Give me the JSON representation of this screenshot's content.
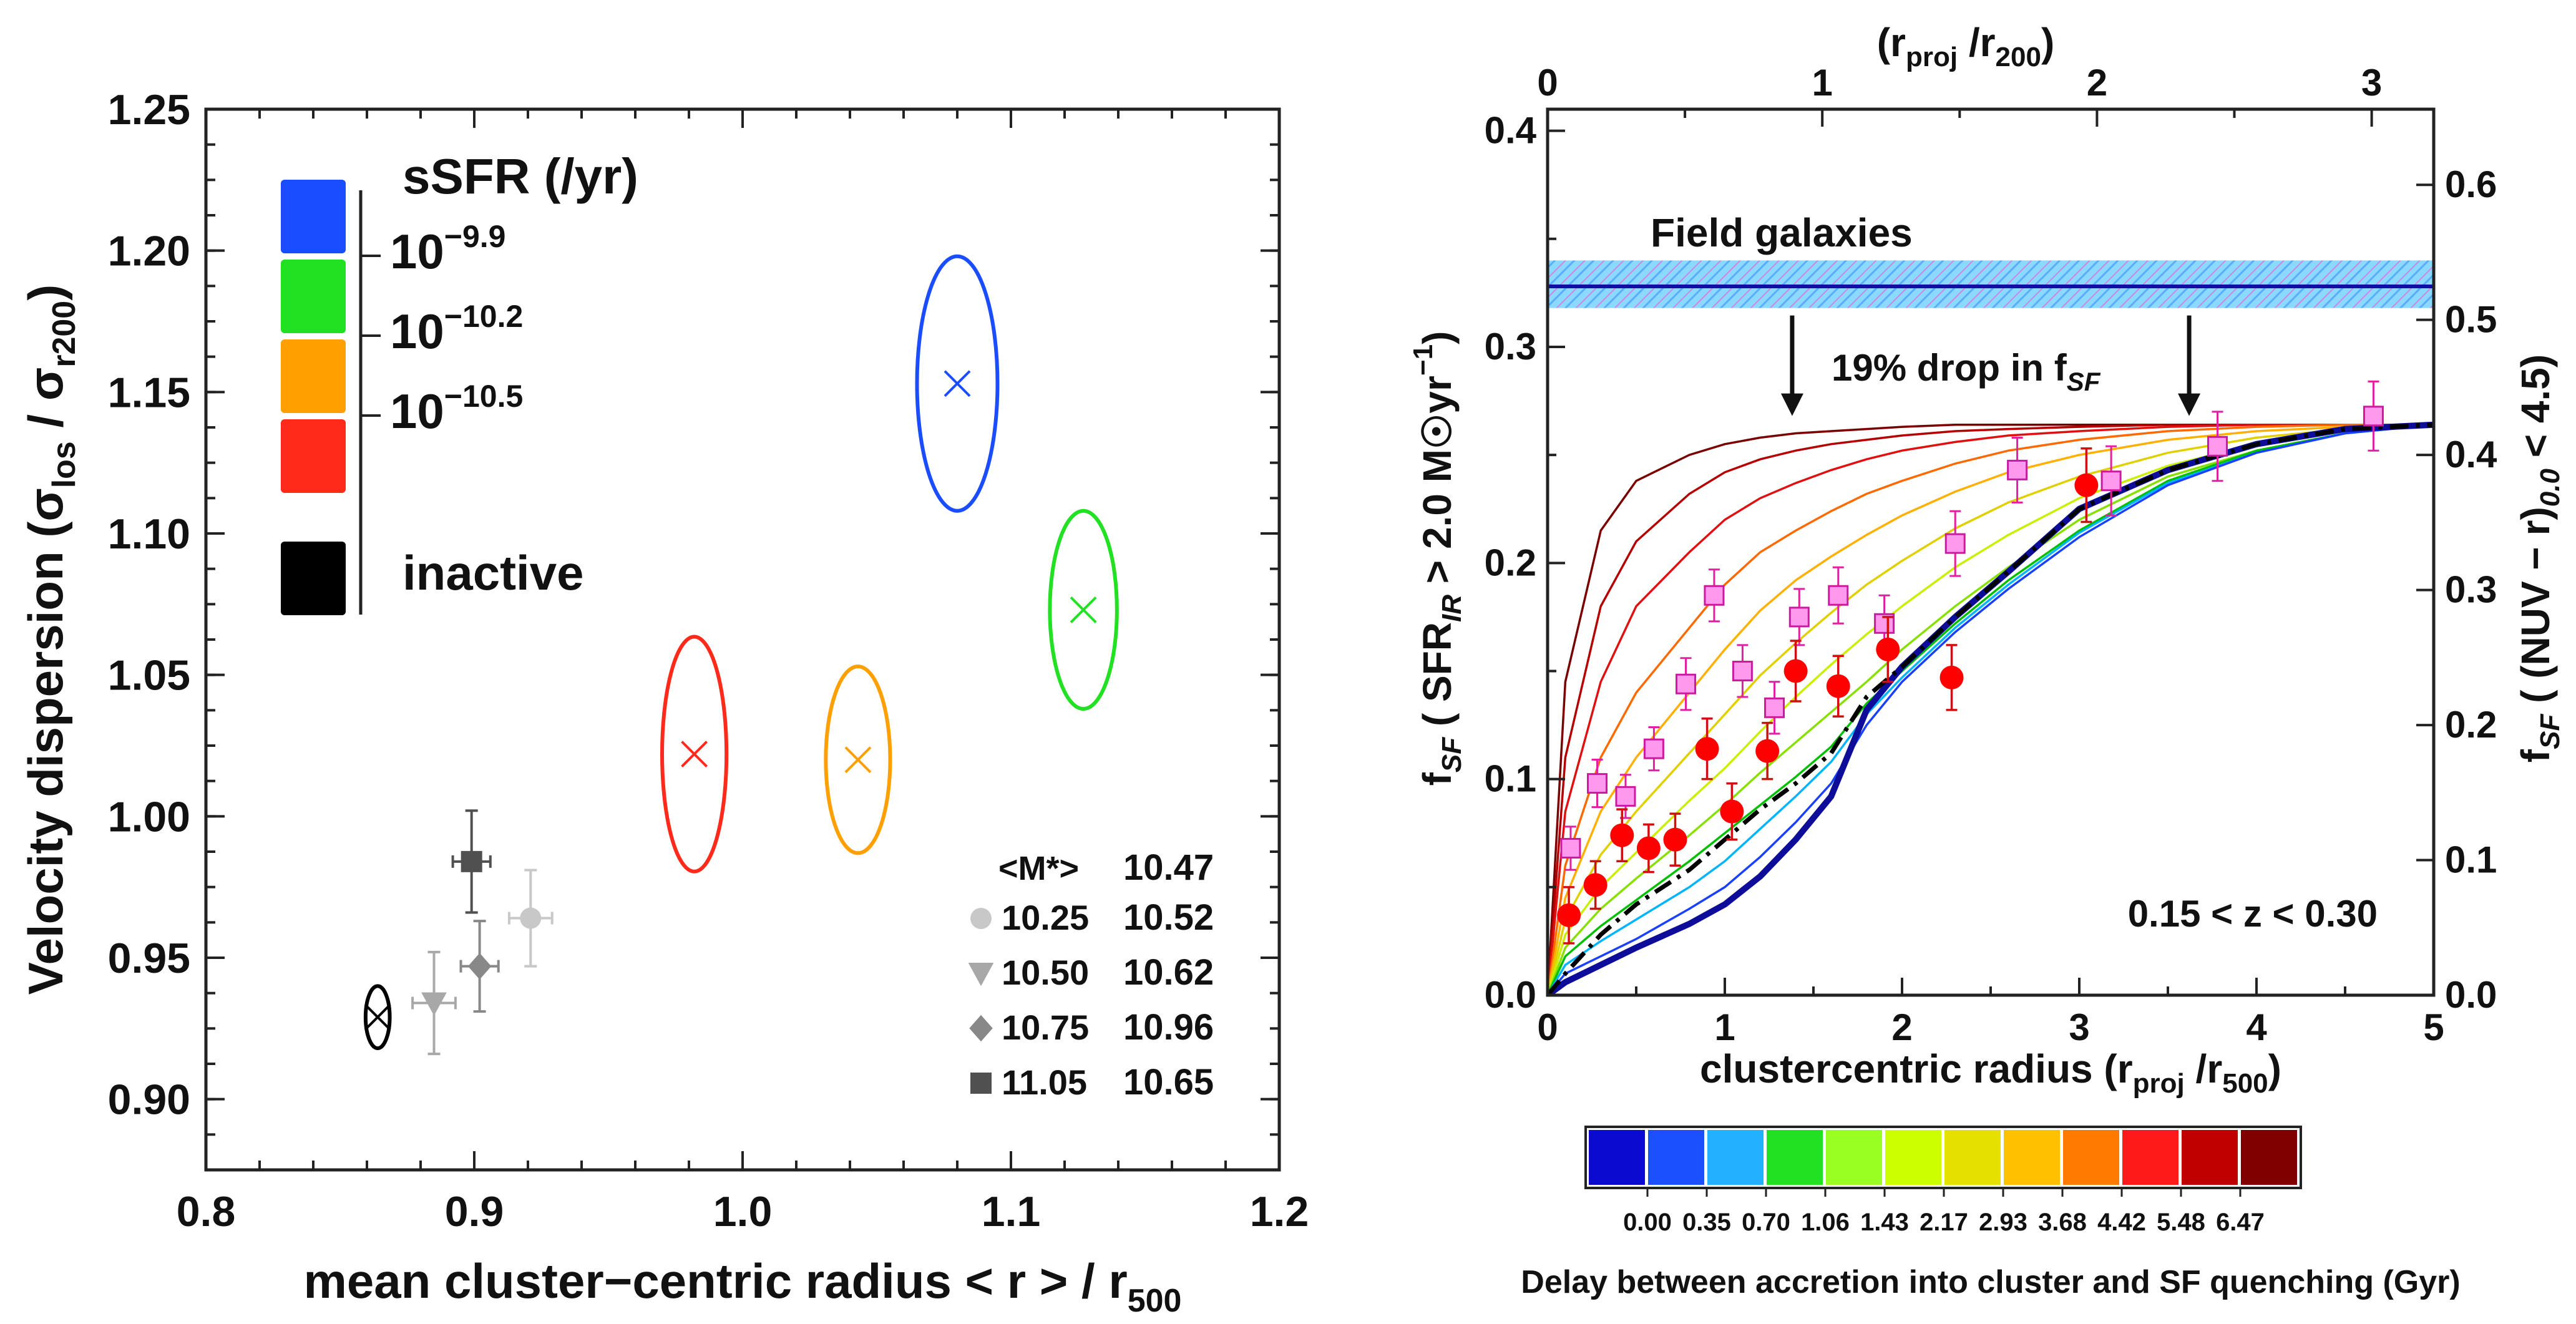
{
  "chart_data": [
    {
      "type": "scatter",
      "xlabel": "mean cluster−centric radius < r > / r",
      "xlabel_sub": "500",
      "ylabel": "Velocity dispersion (σ",
      "ylabel_sub1": "los",
      "ylabel_mid": " / σ",
      "ylabel_sub2": "r200",
      "ylabel_end": ")",
      "xlim": [
        0.8,
        1.2
      ],
      "ylim": [
        0.875,
        1.25
      ],
      "x_ticks": [
        "0.8",
        "0.9",
        "1.0",
        "1.1",
        "1.2"
      ],
      "y_ticks": [
        "0.90",
        "0.95",
        "1.00",
        "1.05",
        "1.10",
        "1.15",
        "1.20",
        "1.25"
      ],
      "legend": {
        "title": "sSFR (/yr)",
        "swatches": [
          {
            "color": "#1a4dff"
          },
          {
            "color": "#22e022"
          },
          {
            "color": "#ffa000"
          },
          {
            "color": "#ff2a1a"
          },
          {
            "color": "#000000"
          }
        ],
        "thresholds": [
          {
            "base": "10",
            "exp": "−9.9"
          },
          {
            "base": "10",
            "exp": "−10.2"
          },
          {
            "base": "10",
            "exp": "−10.5"
          }
        ],
        "inactive_label": "inactive"
      },
      "ellipses": [
        {
          "x": 1.08,
          "y": 1.153,
          "rx": 0.015,
          "ry": 0.045,
          "color": "#1a4dff"
        },
        {
          "x": 1.127,
          "y": 1.073,
          "rx": 0.0125,
          "ry": 0.035,
          "color": "#22e022"
        },
        {
          "x": 1.043,
          "y": 1.02,
          "rx": 0.012,
          "ry": 0.033,
          "color": "#ffa000"
        },
        {
          "x": 0.982,
          "y": 1.022,
          "rx": 0.012,
          "ry": 0.0415,
          "color": "#ff2a1a"
        },
        {
          "x": 0.864,
          "y": 0.929,
          "rx": 0.0045,
          "ry": 0.011,
          "color": "#000000"
        }
      ],
      "points": [
        {
          "shape": "circle",
          "x": 0.921,
          "y": 0.964,
          "xerr": 0.008,
          "yerr": 0.017,
          "color": "#c8c8c8"
        },
        {
          "shape": "triangle",
          "x": 0.885,
          "y": 0.934,
          "xerr": 0.008,
          "yerr": 0.018,
          "color": "#a8a8a8"
        },
        {
          "shape": "diamond",
          "x": 0.902,
          "y": 0.947,
          "xerr": 0.007,
          "yerr": 0.016,
          "color": "#888888"
        },
        {
          "shape": "square",
          "x": 0.899,
          "y": 0.984,
          "xerr": 0.007,
          "yerr": 0.018,
          "color": "#505050"
        }
      ],
      "mass_table": {
        "header_left": "<M*>",
        "header_right": "10.47",
        "header_right_color": "#1a4dff",
        "rows": [
          {
            "shape": "circle",
            "color": "#c8c8c8",
            "mass": "10.25",
            "value": "10.52",
            "value_color": "#22cc22"
          },
          {
            "shape": "triangle",
            "color": "#a8a8a8",
            "mass": "10.50",
            "value": "10.62",
            "value_color": "#ffa000"
          },
          {
            "shape": "diamond",
            "color": "#888888",
            "mass": "10.75",
            "value": "10.96",
            "value_color": "#ff2a1a"
          },
          {
            "shape": "square",
            "color": "#505050",
            "mass": "11.05",
            "value": "10.65",
            "value_color": "#111111"
          }
        ]
      }
    },
    {
      "type": "line",
      "xlabel": "clustercentric radius (r",
      "xlabel_sub": "proj",
      "xlabel_mid": " /r",
      "xlabel_sub2": "500",
      "xlabel_end": ")",
      "top_xlabel": "(r",
      "top_xlabel_sub": "proj",
      "top_xlabel_mid": " /r",
      "top_xlabel_sub2": "200",
      "top_xlabel_end": ")",
      "ylabel_left": {
        "a": "f",
        "a_sub": "SF",
        "b": " ( SFR",
        "b_sub": "IR",
        "c": " > 2.0 M☉yr",
        "c_sup": "−1",
        "d": ")"
      },
      "ylabel_right": {
        "a": "f",
        "a_sub": "SF",
        "b": " ( (NUV − r)",
        "b_sub": "0.0",
        "c": " < 4.5)"
      },
      "xlim": [
        0,
        5
      ],
      "ylim_left": [
        0,
        0.41
      ],
      "ylim_right": [
        0,
        0.656
      ],
      "x_ticks": [
        "0",
        "1",
        "2",
        "3",
        "4",
        "5"
      ],
      "top_ticks": [
        {
          "v": 0,
          "label": "0"
        },
        {
          "v": 1,
          "label": "1"
        },
        {
          "v": 2,
          "label": "2"
        },
        {
          "v": 3,
          "label": "3"
        }
      ],
      "top_scale": 1.55,
      "yleft_ticks": [
        "0.0",
        "0.1",
        "0.2",
        "0.3",
        "0.4"
      ],
      "yright_ticks": [
        "0.0",
        "0.1",
        "0.2",
        "0.3",
        "0.4",
        "0.5",
        "0.6"
      ],
      "field": {
        "label": "Field galaxies",
        "label_color": "#1a1ad0",
        "y": 0.328,
        "y_lo": 0.318,
        "y_hi": 0.34,
        "line_color": "#1010a0",
        "band_color": "#66ccff",
        "hatch_color": "#ff44cc"
      },
      "annotation": {
        "text": "19% drop in f",
        "sub": "SF",
        "arrows_x": [
          1.38,
          3.62
        ]
      },
      "z_label": "0.15 < z < 0.30",
      "model_x": [
        0,
        0.1,
        0.3,
        0.5,
        0.8,
        1.0,
        1.2,
        1.4,
        1.6,
        1.8,
        2.0,
        2.3,
        2.6,
        3.0,
        3.5,
        4.0,
        4.5,
        5.0
      ],
      "model_curves": [
        {
          "delay": "6.47",
          "color": "#7a0000",
          "y": [
            0,
            0.145,
            0.215,
            0.238,
            0.25,
            0.255,
            0.258,
            0.26,
            0.261,
            0.262,
            0.263,
            0.264,
            0.264,
            0.264,
            0.264,
            0.264,
            0.264,
            0.264
          ]
        },
        {
          "delay": "5.48",
          "color": "#b40000",
          "y": [
            0,
            0.11,
            0.18,
            0.21,
            0.232,
            0.242,
            0.248,
            0.252,
            0.255,
            0.257,
            0.259,
            0.261,
            0.262,
            0.263,
            0.264,
            0.264,
            0.264,
            0.264
          ]
        },
        {
          "delay": "4.42",
          "color": "#e01010",
          "y": [
            0,
            0.085,
            0.145,
            0.18,
            0.205,
            0.22,
            0.23,
            0.237,
            0.243,
            0.248,
            0.252,
            0.256,
            0.259,
            0.261,
            0.263,
            0.264,
            0.264,
            0.264
          ]
        },
        {
          "delay": "3.68",
          "color": "#ff6a00",
          "y": [
            0,
            0.06,
            0.11,
            0.14,
            0.17,
            0.19,
            0.205,
            0.215,
            0.224,
            0.232,
            0.238,
            0.246,
            0.252,
            0.257,
            0.261,
            0.263,
            0.264,
            0.264
          ]
        },
        {
          "delay": "2.93",
          "color": "#ffb000",
          "y": [
            0,
            0.045,
            0.085,
            0.11,
            0.14,
            0.16,
            0.178,
            0.192,
            0.203,
            0.213,
            0.222,
            0.233,
            0.242,
            0.25,
            0.257,
            0.261,
            0.263,
            0.264
          ]
        },
        {
          "delay": "2.17",
          "color": "#e0d000",
          "y": [
            0,
            0.035,
            0.065,
            0.085,
            0.112,
            0.13,
            0.148,
            0.163,
            0.177,
            0.19,
            0.201,
            0.216,
            0.228,
            0.24,
            0.251,
            0.258,
            0.262,
            0.264
          ]
        },
        {
          "delay": "1.43",
          "color": "#c8f000",
          "y": [
            0,
            0.028,
            0.05,
            0.066,
            0.09,
            0.105,
            0.122,
            0.138,
            0.153,
            0.167,
            0.18,
            0.198,
            0.213,
            0.23,
            0.245,
            0.255,
            0.261,
            0.264
          ]
        },
        {
          "delay": "1.06",
          "color": "#88e000",
          "y": [
            0,
            0.022,
            0.04,
            0.054,
            0.074,
            0.088,
            0.103,
            0.117,
            0.131,
            0.145,
            0.16,
            0.18,
            0.198,
            0.22,
            0.24,
            0.252,
            0.26,
            0.264
          ]
        },
        {
          "delay": "0.70",
          "color": "#00c000",
          "y": [
            0,
            0.018,
            0.032,
            0.044,
            0.062,
            0.075,
            0.088,
            0.101,
            0.115,
            0.135,
            0.15,
            0.172,
            0.192,
            0.215,
            0.238,
            0.252,
            0.26,
            0.264
          ]
        },
        {
          "delay": "0.35",
          "color": "#00b4ff",
          "y": [
            0,
            0.014,
            0.025,
            0.035,
            0.05,
            0.062,
            0.077,
            0.092,
            0.108,
            0.13,
            0.147,
            0.17,
            0.19,
            0.214,
            0.237,
            0.251,
            0.26,
            0.264
          ]
        },
        {
          "delay": "0.00",
          "color": "#1a40ff",
          "y": [
            0,
            0.01,
            0.018,
            0.026,
            0.04,
            0.05,
            0.064,
            0.08,
            0.098,
            0.125,
            0.145,
            0.168,
            0.188,
            0.212,
            0.236,
            0.251,
            0.26,
            0.264
          ]
        }
      ],
      "bold_curve": {
        "color": "#0d0d99",
        "y": [
          0,
          0.006,
          0.014,
          0.022,
          0.033,
          0.042,
          0.055,
          0.072,
          0.092,
          0.132,
          0.152,
          0.175,
          0.196,
          0.225,
          0.243,
          0.255,
          0.262,
          0.264
        ]
      },
      "dashdot_curve": {
        "color": "#000000",
        "y": [
          0,
          0.01,
          0.028,
          0.042,
          0.058,
          0.072,
          0.086,
          0.098,
          0.112,
          0.138,
          0.152,
          0.175,
          0.196,
          0.225,
          0.243,
          0.255,
          0.262,
          0.264
        ]
      },
      "ir_points": [
        {
          "x": 0.12,
          "y": 0.037,
          "err": 0.013
        },
        {
          "x": 0.27,
          "y": 0.051,
          "err": 0.011
        },
        {
          "x": 0.42,
          "y": 0.074,
          "err": 0.012
        },
        {
          "x": 0.57,
          "y": 0.068,
          "err": 0.011
        },
        {
          "x": 0.72,
          "y": 0.072,
          "err": 0.012
        },
        {
          "x": 0.9,
          "y": 0.114,
          "err": 0.014
        },
        {
          "x": 1.04,
          "y": 0.085,
          "err": 0.013
        },
        {
          "x": 1.24,
          "y": 0.113,
          "err": 0.013
        },
        {
          "x": 1.4,
          "y": 0.15,
          "err": 0.014
        },
        {
          "x": 1.64,
          "y": 0.143,
          "err": 0.014
        },
        {
          "x": 1.92,
          "y": 0.16,
          "err": 0.015
        },
        {
          "x": 2.28,
          "y": 0.147,
          "err": 0.015
        },
        {
          "x": 3.04,
          "y": 0.236,
          "err": 0.017
        }
      ],
      "nuv_points": [
        {
          "x": 0.13,
          "y": 0.068,
          "err": 0.01
        },
        {
          "x": 0.28,
          "y": 0.098,
          "err": 0.011
        },
        {
          "x": 0.44,
          "y": 0.092,
          "err": 0.01
        },
        {
          "x": 0.6,
          "y": 0.114,
          "err": 0.01
        },
        {
          "x": 0.78,
          "y": 0.144,
          "err": 0.012
        },
        {
          "x": 0.94,
          "y": 0.185,
          "err": 0.012
        },
        {
          "x": 1.1,
          "y": 0.15,
          "err": 0.012
        },
        {
          "x": 1.28,
          "y": 0.133,
          "err": 0.012
        },
        {
          "x": 1.42,
          "y": 0.175,
          "err": 0.013
        },
        {
          "x": 1.64,
          "y": 0.185,
          "err": 0.013
        },
        {
          "x": 1.9,
          "y": 0.172,
          "err": 0.013
        },
        {
          "x": 2.3,
          "y": 0.209,
          "err": 0.015
        },
        {
          "x": 2.65,
          "y": 0.243,
          "err": 0.015
        },
        {
          "x": 3.18,
          "y": 0.238,
          "err": 0.016
        },
        {
          "x": 3.78,
          "y": 0.254,
          "err": 0.016
        },
        {
          "x": 4.66,
          "y": 0.268,
          "err": 0.016
        }
      ],
      "colorbar": {
        "colors": [
          "#0a0ad0",
          "#1a50ff",
          "#22b0ff",
          "#22e022",
          "#99ff22",
          "#ccff00",
          "#e6e000",
          "#ffc000",
          "#ff7a00",
          "#ff1a1a",
          "#c00000",
          "#800000"
        ],
        "labels": [
          "0.00",
          "0.35",
          "0.70",
          "1.06",
          "1.43",
          "2.17",
          "2.93",
          "3.68",
          "4.42",
          "5.48",
          "6.47"
        ],
        "caption": "Delay between accretion into cluster and SF quenching (Gyr)"
      }
    }
  ]
}
